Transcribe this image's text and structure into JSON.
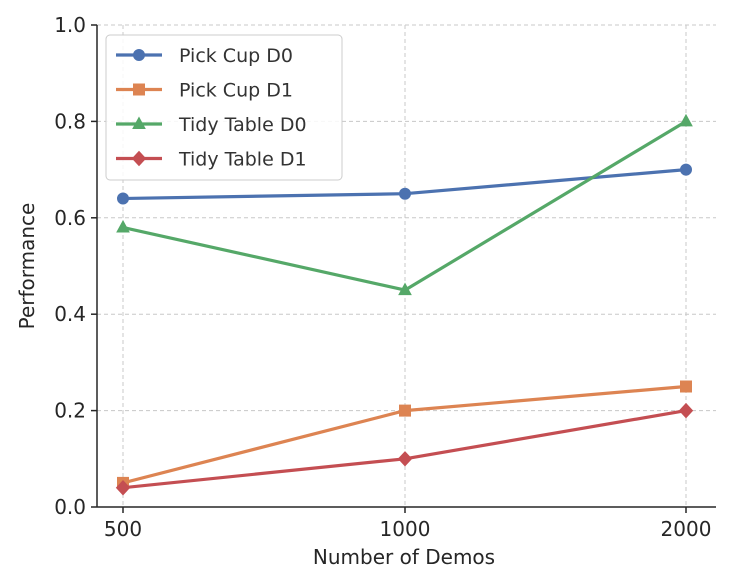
{
  "chart_data": {
    "type": "line",
    "title": "",
    "xlabel": "Number of Demos",
    "ylabel": "Performance",
    "categories": [
      "500",
      "1000",
      "2000"
    ],
    "ylim": [
      0,
      1.0
    ],
    "yticks": [
      "0.0",
      "0.2",
      "0.4",
      "0.6",
      "0.8",
      "1.0"
    ],
    "ytick_values": [
      0,
      0.2,
      0.4,
      0.6,
      0.8,
      1.0
    ],
    "grid": true,
    "legend_position": "top-left",
    "series": [
      {
        "name": "Pick Cup D0",
        "color": "#4c72b0",
        "marker": "circle",
        "values": [
          0.64,
          0.65,
          0.7
        ]
      },
      {
        "name": "Pick Cup D1",
        "color": "#dd8452",
        "marker": "square",
        "values": [
          0.05,
          0.2,
          0.25
        ]
      },
      {
        "name": "Tidy Table D0",
        "color": "#55a868",
        "marker": "triangle",
        "values": [
          0.58,
          0.45,
          0.8
        ]
      },
      {
        "name": "Tidy Table D1",
        "color": "#c44e52",
        "marker": "diamond",
        "values": [
          0.04,
          0.1,
          0.2
        ]
      }
    ]
  }
}
